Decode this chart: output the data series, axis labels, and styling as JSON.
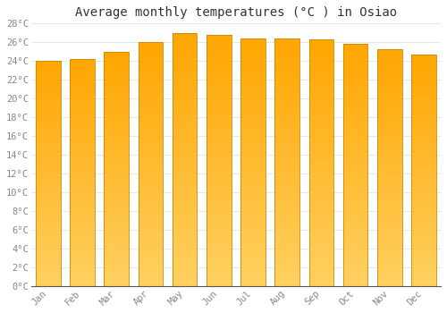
{
  "title": "Average monthly temperatures (°C ) in Osiao",
  "months": [
    "Jan",
    "Feb",
    "Mar",
    "Apr",
    "May",
    "Jun",
    "Jul",
    "Aug",
    "Sep",
    "Oct",
    "Nov",
    "Dec"
  ],
  "values": [
    24.0,
    24.2,
    25.0,
    26.0,
    27.0,
    26.8,
    26.4,
    26.4,
    26.3,
    25.8,
    25.3,
    24.7
  ],
  "bar_color_top": "#FFA500",
  "bar_color_bottom": "#FFD060",
  "ylim": [
    0,
    28
  ],
  "yticks": [
    0,
    2,
    4,
    6,
    8,
    10,
    12,
    14,
    16,
    18,
    20,
    22,
    24,
    26,
    28
  ],
  "ytick_labels": [
    "0°C",
    "2°C",
    "4°C",
    "6°C",
    "8°C",
    "10°C",
    "12°C",
    "14°C",
    "16°C",
    "18°C",
    "20°C",
    "22°C",
    "24°C",
    "26°C",
    "28°C"
  ],
  "grid_color": "#e8e8e8",
  "background_color": "#ffffff",
  "title_fontsize": 10,
  "tick_fontsize": 7.5,
  "tick_color": "#888888",
  "bar_edge_color": "#cc8800",
  "bar_width": 0.72,
  "font_family": "monospace"
}
